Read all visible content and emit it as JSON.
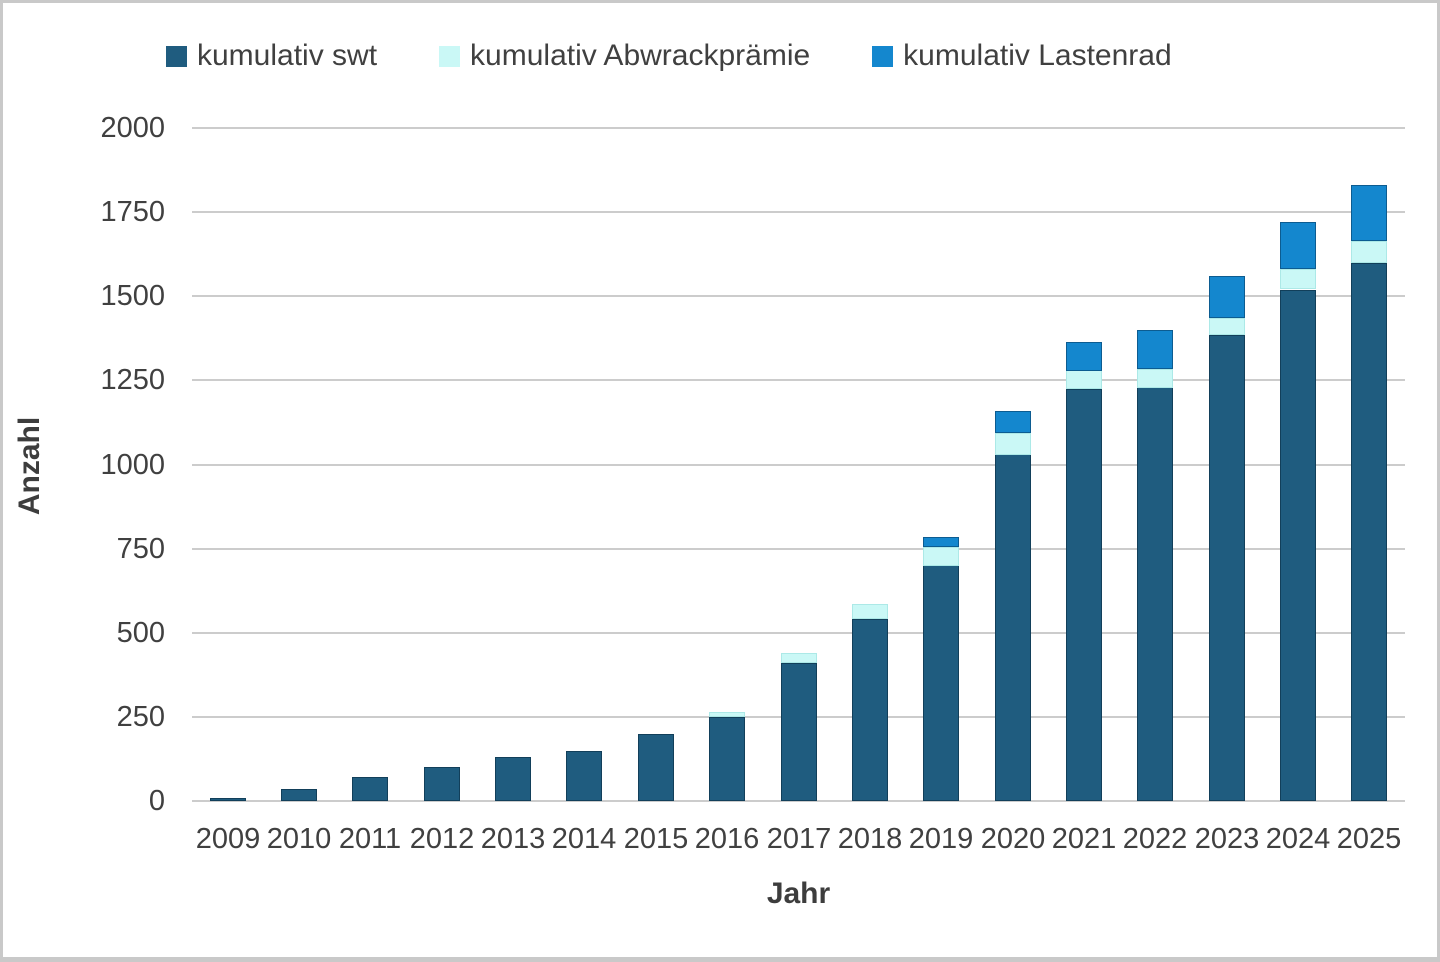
{
  "chart_data": {
    "type": "bar",
    "stacked": true,
    "title": "",
    "xlabel": "Jahr",
    "ylabel": "Anzahl",
    "categories": [
      "2009",
      "2010",
      "2011",
      "2012",
      "2013",
      "2014",
      "2015",
      "2016",
      "2017",
      "2018",
      "2019",
      "2020",
      "2021",
      "2022",
      "2023",
      "2024",
      "2025"
    ],
    "series": [
      {
        "name": "kumulativ swt",
        "color": "#1f5c7f",
        "border_color": "#123f5a",
        "values": [
          10,
          35,
          70,
          100,
          130,
          150,
          200,
          250,
          410,
          540,
          700,
          1030,
          1225,
          1230,
          1385,
          1520,
          1600
        ]
      },
      {
        "name": "kumulativ Abwrackprämie",
        "color": "#caf8f6",
        "border_color": "#ace9e7",
        "values": [
          0,
          0,
          0,
          0,
          0,
          0,
          0,
          15,
          30,
          45,
          55,
          65,
          55,
          55,
          50,
          60,
          65
        ]
      },
      {
        "name": "kumulativ Lastenrad",
        "color": "#1487ce",
        "border_color": "#0c5c91",
        "values": [
          0,
          0,
          0,
          0,
          0,
          0,
          0,
          0,
          0,
          0,
          30,
          65,
          85,
          115,
          125,
          140,
          165
        ]
      }
    ],
    "ylim": [
      0,
      2000
    ],
    "yticks": [
      0,
      250,
      500,
      750,
      1000,
      1250,
      1500,
      1750,
      2000
    ],
    "grid": true,
    "legend_position": "top"
  },
  "colors": {
    "grid": "#cccccc",
    "tick_text": "#404040",
    "axis_title_text": "#3d3d3d",
    "frame_border": "#c9c9c9",
    "background": "#ffffff"
  }
}
